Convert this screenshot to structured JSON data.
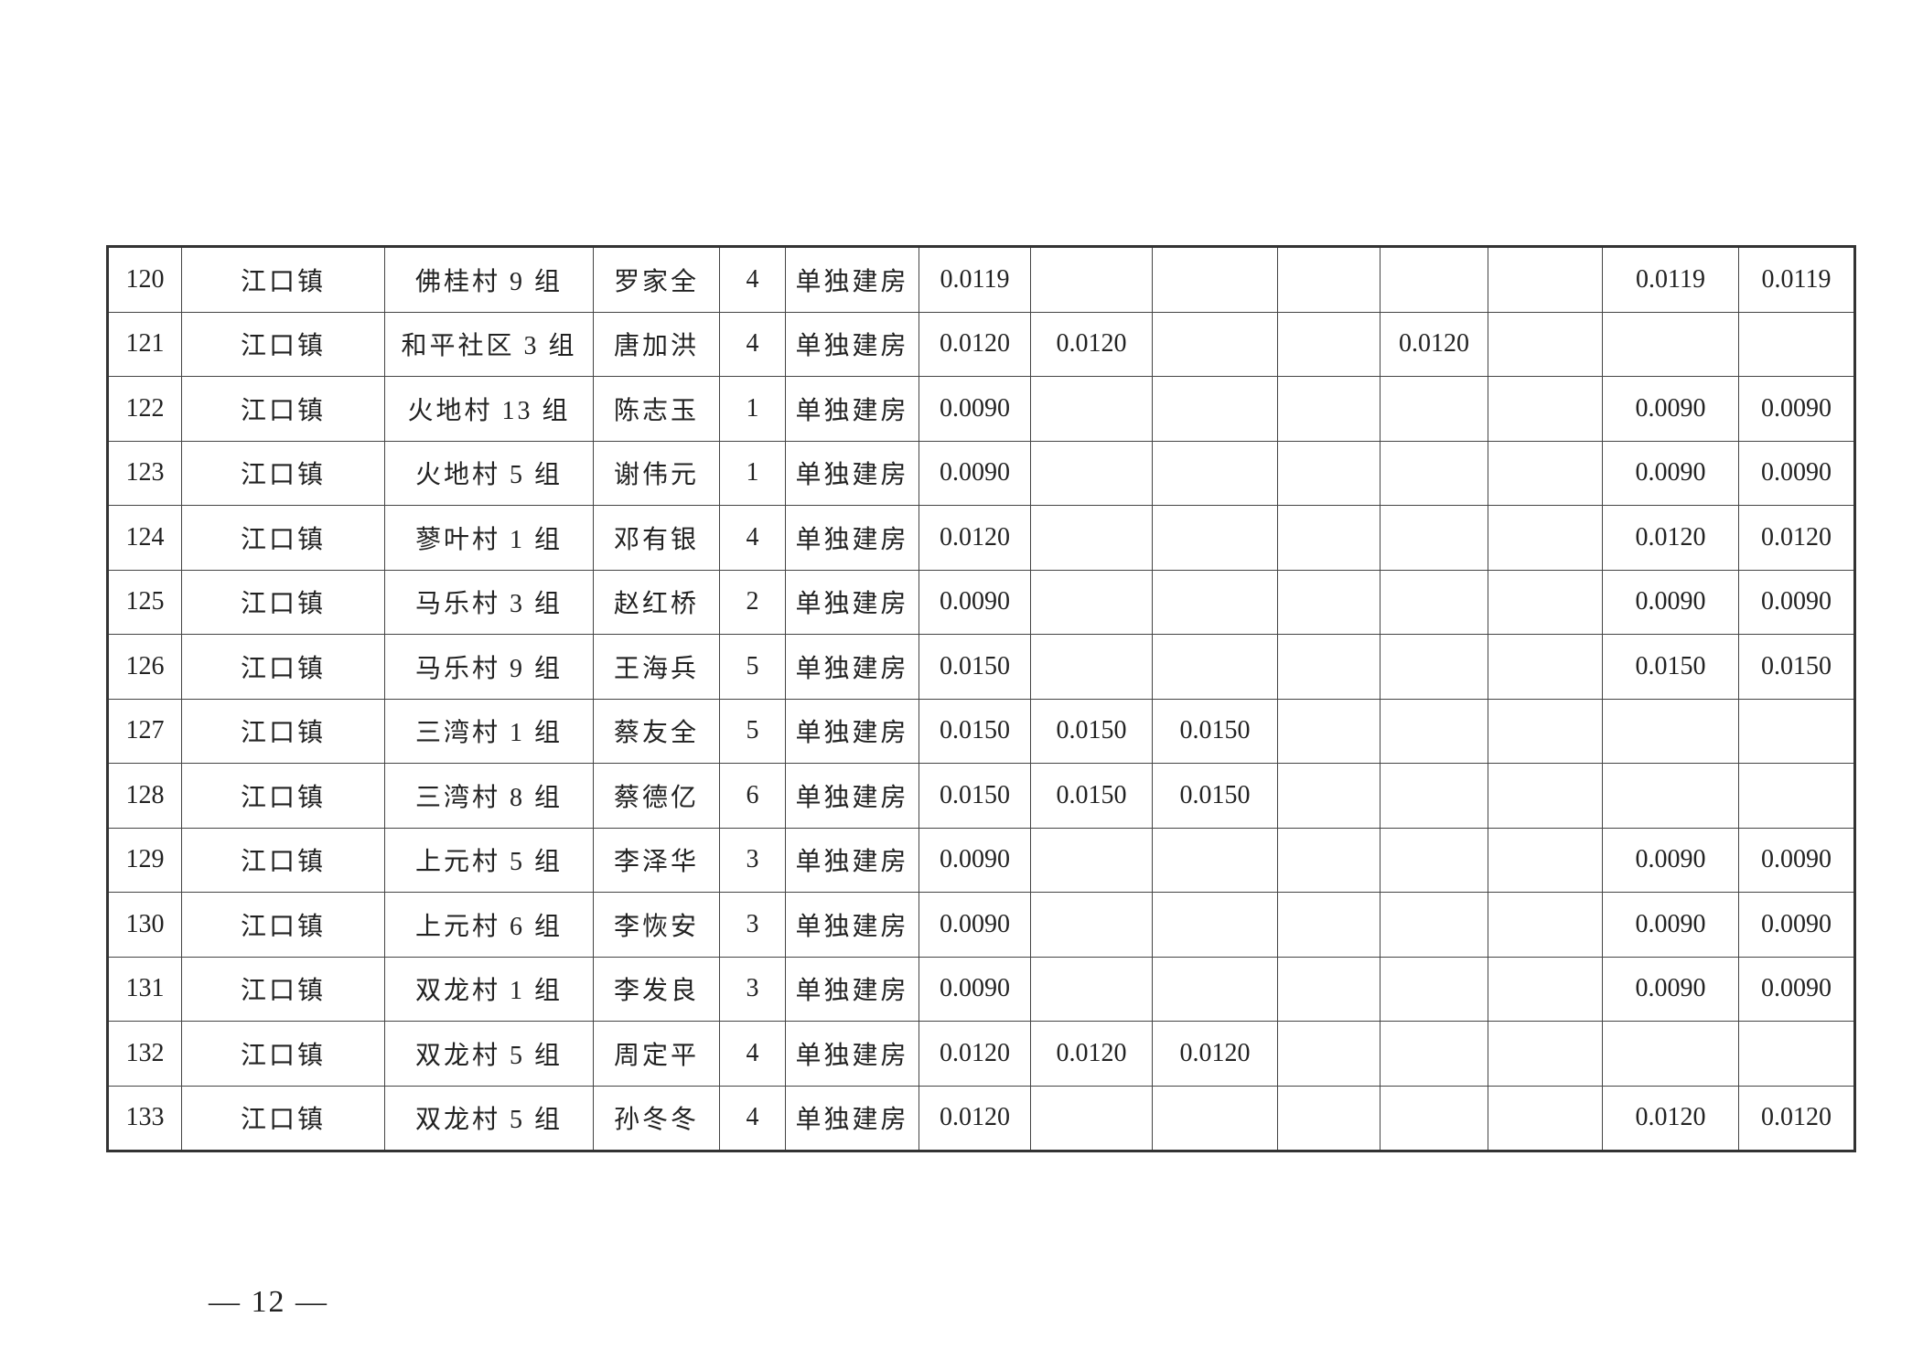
{
  "table": {
    "rows": [
      [
        120,
        "江口镇",
        "佛桂村 9 组",
        "罗家全",
        4,
        "单独建房",
        "0.0119",
        null,
        null,
        null,
        null,
        null,
        "0.0119",
        "0.0119"
      ],
      [
        121,
        "江口镇",
        "和平社区 3 组",
        "唐加洪",
        4,
        "单独建房",
        "0.0120",
        "0.0120",
        null,
        null,
        "0.0120",
        null,
        null,
        null
      ],
      [
        122,
        "江口镇",
        "火地村 13 组",
        "陈志玉",
        1,
        "单独建房",
        "0.0090",
        null,
        null,
        null,
        null,
        null,
        "0.0090",
        "0.0090"
      ],
      [
        123,
        "江口镇",
        "火地村 5 组",
        "谢伟元",
        1,
        "单独建房",
        "0.0090",
        null,
        null,
        null,
        null,
        null,
        "0.0090",
        "0.0090"
      ],
      [
        124,
        "江口镇",
        "蓼叶村 1 组",
        "邓有银",
        4,
        "单独建房",
        "0.0120",
        null,
        null,
        null,
        null,
        null,
        "0.0120",
        "0.0120"
      ],
      [
        125,
        "江口镇",
        "马乐村 3 组",
        "赵红桥",
        2,
        "单独建房",
        "0.0090",
        null,
        null,
        null,
        null,
        null,
        "0.0090",
        "0.0090"
      ],
      [
        126,
        "江口镇",
        "马乐村 9 组",
        "王海兵",
        5,
        "单独建房",
        "0.0150",
        null,
        null,
        null,
        null,
        null,
        "0.0150",
        "0.0150"
      ],
      [
        127,
        "江口镇",
        "三湾村 1 组",
        "蔡友全",
        5,
        "单独建房",
        "0.0150",
        "0.0150",
        "0.0150",
        null,
        null,
        null,
        null,
        null
      ],
      [
        128,
        "江口镇",
        "三湾村 8 组",
        "蔡德亿",
        6,
        "单独建房",
        "0.0150",
        "0.0150",
        "0.0150",
        null,
        null,
        null,
        null,
        null
      ],
      [
        129,
        "江口镇",
        "上元村 5 组",
        "李泽华",
        3,
        "单独建房",
        "0.0090",
        null,
        null,
        null,
        null,
        null,
        "0.0090",
        "0.0090"
      ],
      [
        130,
        "江口镇",
        "上元村 6 组",
        "李恢安",
        3,
        "单独建房",
        "0.0090",
        null,
        null,
        null,
        null,
        null,
        "0.0090",
        "0.0090"
      ],
      [
        131,
        "江口镇",
        "双龙村 1 组",
        "李发良",
        3,
        "单独建房",
        "0.0090",
        null,
        null,
        null,
        null,
        null,
        "0.0090",
        "0.0090"
      ],
      [
        132,
        "江口镇",
        "双龙村 5 组",
        "周定平",
        4,
        "单独建房",
        "0.0120",
        "0.0120",
        "0.0120",
        null,
        null,
        null,
        null,
        null
      ],
      [
        133,
        "江口镇",
        "双龙村 5 组",
        "孙冬冬",
        4,
        "单独建房",
        "0.0120",
        null,
        null,
        null,
        null,
        null,
        "0.0120",
        "0.0120"
      ]
    ]
  },
  "footer": {
    "page_number": "— 12 —"
  }
}
